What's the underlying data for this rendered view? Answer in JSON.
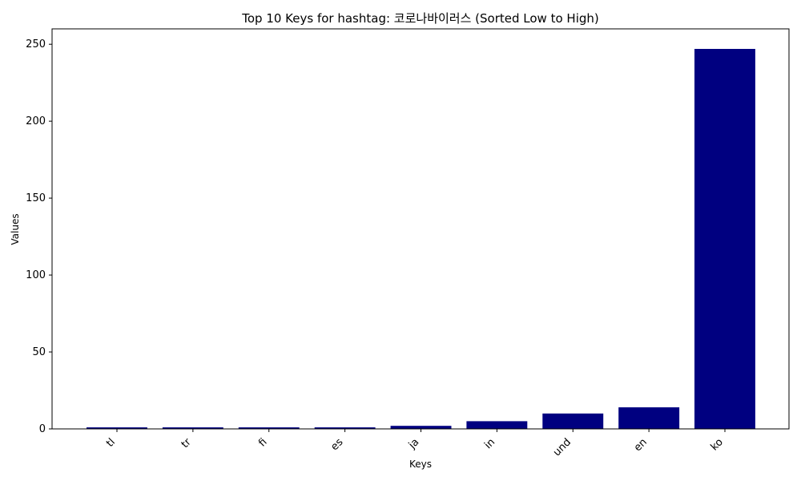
{
  "chart_data": {
    "type": "bar",
    "title": "Top 10 Keys for hashtag: 코로나바이러스 (Sorted Low to High)",
    "xlabel": "Keys",
    "ylabel": "Values",
    "categories": [
      "tl",
      "tr",
      "fi",
      "es",
      "ja",
      "in",
      "und",
      "en",
      "ko"
    ],
    "values": [
      1,
      1,
      1,
      1,
      2,
      5,
      10,
      14,
      247
    ],
    "ylim": [
      0,
      260
    ],
    "yticks": [
      0,
      50,
      100,
      150,
      200,
      250
    ],
    "bar_color": "#000080",
    "grid": false,
    "x_tick_rotation_deg": 45
  }
}
